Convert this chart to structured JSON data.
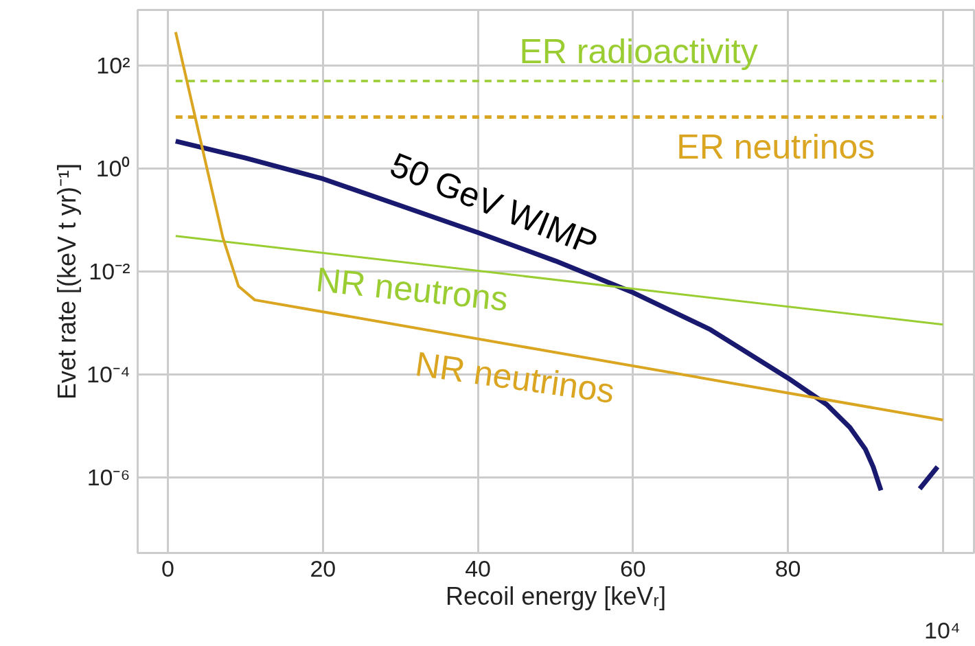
{
  "chart_data": {
    "type": "line",
    "xlabel": "Recoil energy [keVᵣ]",
    "ylabel": "Evet rate [(keV t yr)⁻¹]",
    "log": "y",
    "xlim": [
      -3.9,
      104
    ],
    "ylim": [
      3.4e-08,
      1200
    ],
    "xticks": [
      0,
      20,
      40,
      60,
      80,
      {
        "value": 100,
        "label": null
      }
    ],
    "yticks": [
      {
        "value": 100,
        "label": "10²"
      },
      {
        "value": 1,
        "label": "10⁰"
      },
      {
        "value": 0.01,
        "label": "10⁻²"
      },
      {
        "value": 0.0001,
        "label": "10⁻⁴"
      },
      {
        "value": 1e-06,
        "label": "10⁻⁶"
      }
    ],
    "grid": true,
    "series": [
      {
        "name": "ER radioactivity",
        "color": "#9acd32",
        "line_style": "dashed",
        "x": [
          1,
          100
        ],
        "values": [
          50,
          50
        ]
      },
      {
        "name": "ER neutrinos",
        "color": "#daa520",
        "line_style": "dashed",
        "x": [
          1,
          100
        ],
        "values": [
          10,
          10
        ]
      },
      {
        "name": "50 GeV WIMP",
        "color": "#191970",
        "line_style": "solid",
        "x": [
          1,
          10,
          20,
          30,
          40,
          50,
          60,
          70,
          80,
          85,
          88,
          90,
          91,
          92,
          93,
          97,
          99.3
        ],
        "values": [
          3.4,
          1.6,
          0.63,
          0.19,
          0.057,
          0.016,
          0.0039,
          0.00074,
          8.5e-05,
          2.6e-05,
          9.3e-06,
          3.5e-06,
          1.6e-06,
          5.6e-07,
          null,
          6e-07,
          1.6e-06
        ]
      },
      {
        "name": "NR neutrons",
        "color": "#9acd32",
        "line_style": "solid",
        "x": [
          1,
          100
        ],
        "values": [
          0.049,
          0.00093
        ]
      },
      {
        "name": "NR neutrinos",
        "color": "#daa520",
        "line_style": "solid",
        "x": [
          1,
          7.1,
          9.1,
          11.2,
          100
        ],
        "values": [
          445,
          0.045,
          0.0052,
          0.0028,
          1.3e-05
        ]
      }
    ],
    "annotations": [
      "10⁴"
    ]
  }
}
